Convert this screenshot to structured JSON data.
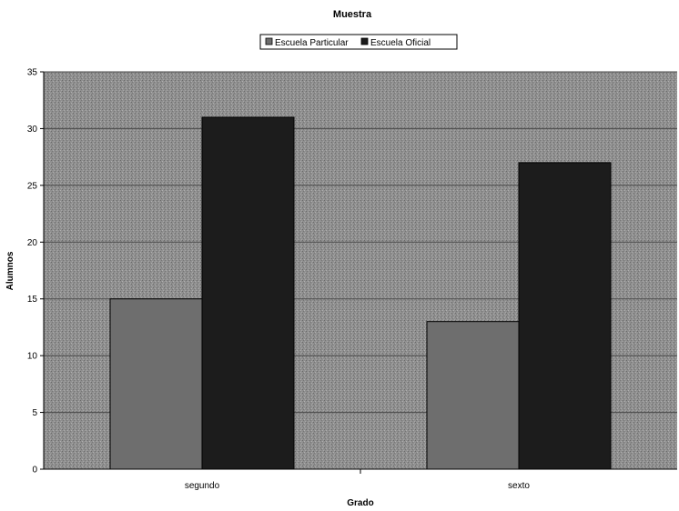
{
  "chart_data": {
    "type": "bar",
    "title": "Muestra",
    "xlabel": "Grado",
    "ylabel": "Alumnos",
    "categories": [
      "segundo",
      "sexto"
    ],
    "series": [
      {
        "name": "Escuela Particular",
        "values": [
          15,
          13
        ],
        "color": "#6e6e6e"
      },
      {
        "name": "Escuela Oficial",
        "values": [
          31,
          27
        ],
        "color": "#1c1c1c"
      }
    ],
    "ylim": [
      0,
      35
    ],
    "yticks": [
      "0",
      "5",
      "10",
      "15",
      "20",
      "25",
      "30",
      "35"
    ],
    "grid": true,
    "legend_position": "top",
    "plot_background": "#8a8a8a"
  }
}
